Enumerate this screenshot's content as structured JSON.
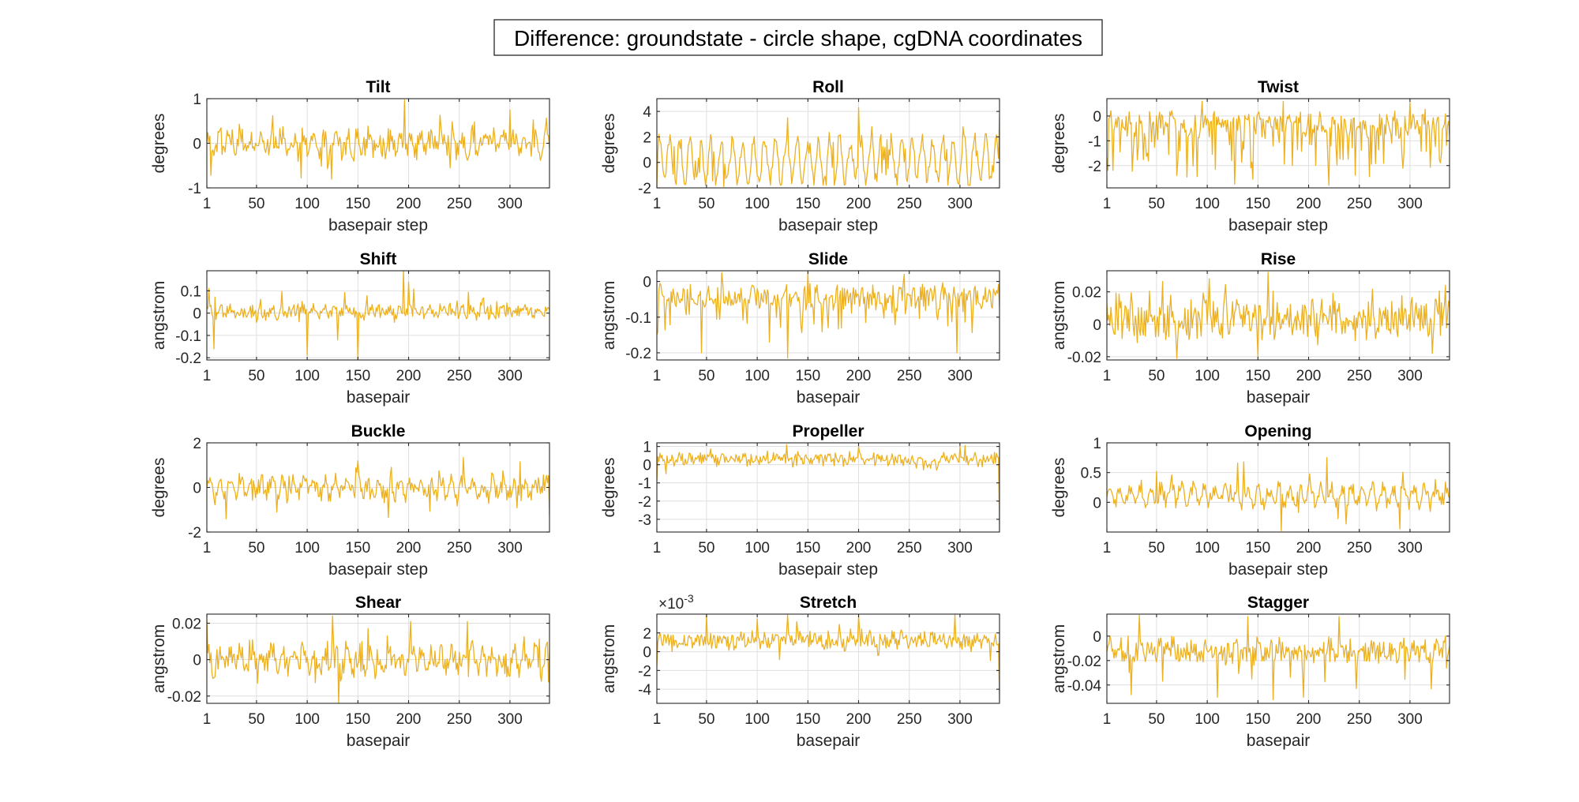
{
  "figure": {
    "title": "Difference: groundstate - circle shape, cgDNA coordinates",
    "series_color": "#EDB120"
  },
  "chart_data": [
    {
      "type": "line",
      "title": "Tilt",
      "xlabel": "basepair step",
      "ylabel": "degrees",
      "xlim": [
        1,
        339
      ],
      "ylim": [
        -1,
        1
      ],
      "xticks": [
        1,
        50,
        100,
        150,
        200,
        250,
        300
      ],
      "yticks": [
        -1,
        0,
        1
      ],
      "yticklabels": [
        "-1",
        "0",
        "1"
      ],
      "exponent": "",
      "n": 339,
      "amp": 0.32,
      "base": 0.02,
      "period": 10.4,
      "periodic": 0.55,
      "spike": 0.05,
      "seed": 11,
      "peaks": [
        [
          196,
          0.97
        ],
        [
          5,
          -0.72
        ],
        [
          94,
          -0.78
        ],
        [
          300,
          0.75
        ],
        [
          66,
          0.62
        ],
        [
          241,
          -0.55
        ]
      ]
    },
    {
      "type": "line",
      "title": "Roll",
      "xlabel": "basepair step",
      "ylabel": "degrees",
      "xlim": [
        1,
        339
      ],
      "ylim": [
        -2,
        5
      ],
      "xticks": [
        1,
        50,
        100,
        150,
        200,
        250,
        300
      ],
      "yticks": [
        -2,
        0,
        2,
        4
      ],
      "yticklabels": [
        "-2",
        "0",
        "2",
        "4"
      ],
      "exponent": "",
      "n": 339,
      "amp": 1.75,
      "base": 0.15,
      "period": 10.4,
      "periodic": 0.9,
      "spike": 0.05,
      "seed": 23,
      "peaks": [
        [
          339,
          3.6
        ],
        [
          1,
          -1.9
        ],
        [
          200,
          4.3
        ],
        [
          67,
          -1.9
        ],
        [
          130,
          3.5
        ]
      ]
    },
    {
      "type": "line",
      "title": "Twist",
      "xlabel": "basepair step",
      "ylabel": "degrees",
      "xlim": [
        1,
        339
      ],
      "ylim": [
        -2.9,
        0.7
      ],
      "xticks": [
        1,
        50,
        100,
        150,
        200,
        250,
        300
      ],
      "yticks": [
        -2,
        -1,
        0
      ],
      "yticklabels": [
        "-2",
        "-1",
        "0"
      ],
      "exponent": "",
      "n": 339,
      "amp": 0.45,
      "base": -0.35,
      "period": 10.4,
      "periodic": 0.35,
      "spike": 0.22,
      "spikeAmp": -1.6,
      "seed": 37,
      "peaks": [
        [
          127,
          -2.75
        ],
        [
          220,
          -2.8
        ],
        [
          145,
          -2.55
        ],
        [
          70,
          -2.4
        ],
        [
          260,
          -2.45
        ],
        [
          95,
          0.6
        ],
        [
          175,
          0.6
        ],
        [
          300,
          0.55
        ]
      ]
    },
    {
      "type": "line",
      "title": "Shift",
      "xlabel": "basepair",
      "ylabel": "angstrom",
      "xlim": [
        1,
        339
      ],
      "ylim": [
        -0.21,
        0.19
      ],
      "xticks": [
        1,
        50,
        100,
        150,
        200,
        250,
        300
      ],
      "yticks": [
        -0.2,
        -0.1,
        0,
        0.1
      ],
      "yticklabels": [
        "-0.2",
        "-0.1",
        "0",
        "0.1"
      ],
      "exponent": "",
      "n": 339,
      "amp": 0.03,
      "base": 0.005,
      "period": 10.4,
      "periodic": 0.3,
      "spike": 0.06,
      "spikeAmp": 0.08,
      "seed": 41,
      "peaks": [
        [
          195,
          0.19
        ],
        [
          200,
          0.14
        ],
        [
          150,
          -0.21
        ],
        [
          8,
          -0.16
        ],
        [
          130,
          -0.12
        ],
        [
          100,
          -0.19
        ]
      ]
    },
    {
      "type": "line",
      "title": "Slide",
      "xlabel": "basepair",
      "ylabel": "angstrom",
      "xlim": [
        1,
        339
      ],
      "ylim": [
        -0.22,
        0.03
      ],
      "xticks": [
        1,
        50,
        100,
        150,
        200,
        250,
        300
      ],
      "yticks": [
        -0.2,
        -0.1,
        0
      ],
      "yticklabels": [
        "-0.2",
        "-0.1",
        "0"
      ],
      "exponent": "",
      "n": 339,
      "amp": 0.03,
      "base": -0.045,
      "period": 10.4,
      "periodic": 0.3,
      "spike": 0.08,
      "spikeAmp": -0.08,
      "seed": 53,
      "peaks": [
        [
          130,
          -0.215
        ],
        [
          45,
          -0.2
        ],
        [
          297,
          -0.2
        ],
        [
          112,
          -0.17
        ],
        [
          65,
          0.025
        ],
        [
          150,
          0.025
        ],
        [
          245,
          0.02
        ]
      ]
    },
    {
      "type": "line",
      "title": "Rise",
      "xlabel": "basepair",
      "ylabel": "angstrom",
      "xlim": [
        1,
        339
      ],
      "ylim": [
        -0.022,
        0.033
      ],
      "xticks": [
        1,
        50,
        100,
        150,
        200,
        250,
        300
      ],
      "yticks": [
        -0.02,
        0,
        0.02
      ],
      "yticklabels": [
        "-0.02",
        "0",
        "0.02"
      ],
      "exponent": "",
      "n": 339,
      "amp": 0.011,
      "base": 0.003,
      "period": 10.4,
      "periodic": 0.3,
      "spike": 0.06,
      "spikeAmp": 0.012,
      "seed": 67,
      "peaks": [
        [
          160,
          0.032
        ],
        [
          102,
          0.028
        ],
        [
          335,
          0.024
        ],
        [
          70,
          -0.021
        ],
        [
          150,
          -0.02
        ],
        [
          322,
          -0.018
        ]
      ]
    },
    {
      "type": "line",
      "title": "Buckle",
      "xlabel": "basepair step",
      "ylabel": "degrees",
      "xlim": [
        1,
        339
      ],
      "ylim": [
        -2,
        2
      ],
      "xticks": [
        1,
        50,
        100,
        150,
        200,
        250,
        300
      ],
      "yticks": [
        -2,
        0,
        2
      ],
      "yticklabels": [
        "-2",
        "0",
        "2"
      ],
      "exponent": "",
      "n": 340,
      "amp": 0.55,
      "base": 0.0,
      "period": 10.4,
      "periodic": 0.6,
      "spike": 0.04,
      "seed": 71,
      "peaks": [
        [
          254,
          1.35
        ],
        [
          150,
          1.2
        ],
        [
          310,
          1.15
        ],
        [
          180,
          -1.35
        ],
        [
          339,
          -1.3
        ],
        [
          20,
          -1.4
        ],
        [
          70,
          -1.1
        ]
      ]
    },
    {
      "type": "line",
      "title": "Propeller",
      "xlabel": "basepair step",
      "ylabel": "degrees",
      "xlim": [
        1,
        339
      ],
      "ylim": [
        -3.7,
        1.2
      ],
      "xticks": [
        1,
        50,
        100,
        150,
        200,
        250,
        300
      ],
      "yticks": [
        -3,
        -2,
        -1,
        0,
        1
      ],
      "yticklabels": [
        "-3",
        "-2",
        "-1",
        "0",
        "1"
      ],
      "exponent": "",
      "n": 340,
      "amp": 0.3,
      "base": 0.3,
      "period": 10.4,
      "periodic": 0.3,
      "spike": 0.05,
      "seed": 83,
      "peaks": [
        [
          339,
          -3.6
        ],
        [
          1,
          -0.9
        ],
        [
          10,
          -0.5
        ],
        [
          129,
          1.1
        ],
        [
          200,
          1.0
        ],
        [
          300,
          1.0
        ]
      ]
    },
    {
      "type": "line",
      "title": "Opening",
      "xlabel": "basepair step",
      "ylabel": "degrees",
      "xlim": [
        1,
        339
      ],
      "ylim": [
        -0.5,
        1
      ],
      "xticks": [
        1,
        50,
        100,
        150,
        200,
        250,
        300
      ],
      "yticks": [
        0,
        0.5,
        1
      ],
      "yticklabels": [
        "0",
        "0.5",
        "1"
      ],
      "exponent": "",
      "n": 340,
      "amp": 0.2,
      "base": 0.12,
      "period": 10.4,
      "periodic": 0.65,
      "spike": 0.03,
      "seed": 97,
      "peaks": [
        [
          218,
          0.75
        ],
        [
          130,
          0.66
        ],
        [
          136,
          0.68
        ],
        [
          173,
          -0.48
        ],
        [
          290,
          -0.45
        ],
        [
          50,
          0.52
        ]
      ]
    },
    {
      "type": "line",
      "title": "Shear",
      "xlabel": "basepair",
      "ylabel": "angstrom",
      "xlim": [
        1,
        339
      ],
      "ylim": [
        -0.024,
        0.025
      ],
      "xticks": [
        1,
        50,
        100,
        150,
        200,
        250,
        300
      ],
      "yticks": [
        -0.02,
        0,
        0.02
      ],
      "yticklabels": [
        "-0.02",
        "0",
        "0.02"
      ],
      "exponent": "",
      "n": 340,
      "amp": 0.009,
      "base": 0.0,
      "period": 10.4,
      "periodic": 0.5,
      "spike": 0.05,
      "seed": 101,
      "peaks": [
        [
          125,
          0.024
        ],
        [
          1,
          0.022
        ],
        [
          131,
          -0.024
        ],
        [
          202,
          0.021
        ],
        [
          258,
          0.021
        ]
      ]
    },
    {
      "type": "line",
      "title": "Stretch",
      "xlabel": "basepair",
      "ylabel": "angstrom",
      "xlim": [
        1,
        339
      ],
      "ylim": [
        -5.5,
        4
      ],
      "xticks": [
        1,
        50,
        100,
        150,
        200,
        250,
        300
      ],
      "yticks": [
        -4,
        -2,
        0,
        2
      ],
      "yticklabels": [
        "-4",
        "-2",
        "0",
        "2"
      ],
      "exponent": "-3",
      "n": 340,
      "amp": 0.8,
      "base": 1.2,
      "period": 10.4,
      "periodic": 0.3,
      "spike": 0.05,
      "seed": 113,
      "peaks": [
        [
          339,
          -5.3
        ],
        [
          1,
          -1.5
        ],
        [
          50,
          3.9
        ],
        [
          130,
          3.9
        ],
        [
          200,
          3.8
        ],
        [
          295,
          3.9
        ],
        [
          100,
          3.5
        ]
      ]
    },
    {
      "type": "line",
      "title": "Stagger",
      "xlabel": "basepair",
      "ylabel": "angstrom",
      "xlim": [
        1,
        339
      ],
      "ylim": [
        -0.055,
        0.018
      ],
      "xticks": [
        1,
        50,
        100,
        150,
        200,
        250,
        300
      ],
      "yticks": [
        -0.04,
        -0.02,
        0
      ],
      "yticklabels": [
        "-0.04",
        "-0.02",
        "0"
      ],
      "exponent": "",
      "n": 340,
      "amp": 0.009,
      "base": -0.012,
      "period": 10.4,
      "periodic": 0.35,
      "spike": 0.06,
      "spikeAmp": -0.018,
      "seed": 127,
      "peaks": [
        [
          165,
          -0.052
        ],
        [
          195,
          -0.05
        ],
        [
          25,
          -0.048
        ],
        [
          110,
          -0.05
        ],
        [
          33,
          0.017
        ],
        [
          140,
          0.016
        ],
        [
          230,
          0.016
        ]
      ]
    }
  ]
}
